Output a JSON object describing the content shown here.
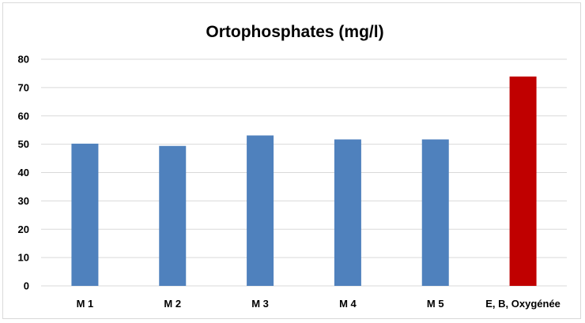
{
  "chart_data": {
    "type": "bar",
    "title": "Ortophosphates (mg/l)",
    "xlabel": "",
    "ylabel": "",
    "categories": [
      "M 1",
      "M 2",
      "M 3",
      "M 4",
      "M 5",
      "E, B, Oxygénée"
    ],
    "values": [
      50.2,
      49.4,
      53.1,
      51.7,
      51.7,
      73.9
    ],
    "colors": [
      "#4f81bd",
      "#4f81bd",
      "#4f81bd",
      "#4f81bd",
      "#4f81bd",
      "#c00000"
    ],
    "ylim": [
      0,
      80
    ],
    "yticks": [
      0,
      10,
      20,
      30,
      40,
      50,
      60,
      70,
      80
    ],
    "grid": true,
    "legend": "none"
  }
}
